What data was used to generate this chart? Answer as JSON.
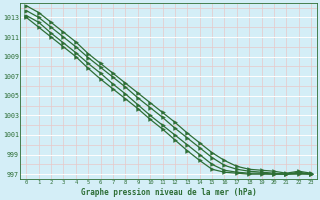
{
  "title": "Graphe pression niveau de la mer (hPa)",
  "bg_color": "#d4eef7",
  "grid_color_minor": "#e8c8c8",
  "grid_color_major": "#ffffff",
  "line_color": "#2d6e35",
  "xlim": [
    -0.5,
    23.5
  ],
  "ylim": [
    996.5,
    1014.5
  ],
  "yticks": [
    997,
    999,
    1001,
    1003,
    1005,
    1007,
    1009,
    1011,
    1013
  ],
  "xticks": [
    0,
    1,
    2,
    3,
    4,
    5,
    6,
    7,
    8,
    9,
    10,
    11,
    12,
    13,
    14,
    15,
    16,
    17,
    18,
    19,
    20,
    21,
    22,
    23
  ],
  "series": [
    [
      1014.2,
      1013.5,
      1012.5,
      1011.5,
      1010.5,
      1009.3,
      1008.3,
      1007.3,
      1006.3,
      1005.3,
      1004.3,
      1003.3,
      1002.3,
      1001.2,
      1000.2,
      999.2,
      998.4,
      997.8,
      997.5,
      997.4,
      997.3,
      997.1,
      997.3,
      997.1
    ],
    [
      1013.7,
      1013.0,
      1012.0,
      1011.0,
      1010.0,
      1008.9,
      1007.9,
      1006.9,
      1005.9,
      1004.8,
      1003.8,
      1002.8,
      1001.7,
      1000.7,
      999.7,
      998.7,
      997.9,
      997.5,
      997.3,
      997.2,
      997.1,
      997.0,
      997.2,
      997.0
    ],
    [
      1013.2,
      1012.5,
      1011.4,
      1010.4,
      1009.4,
      1008.3,
      1007.3,
      1006.2,
      1005.2,
      1004.1,
      1003.0,
      1002.0,
      1001.0,
      1000.0,
      999.0,
      998.0,
      997.4,
      997.2,
      997.1,
      997.1,
      997.0,
      997.0,
      997.1,
      997.0
    ],
    [
      1013.0,
      1012.0,
      1011.0,
      1010.0,
      1009.0,
      1007.8,
      1006.7,
      1005.7,
      1004.7,
      1003.7,
      1002.6,
      1001.6,
      1000.5,
      999.4,
      998.4,
      997.5,
      997.2,
      997.1,
      997.0,
      997.0,
      997.0,
      997.0,
      997.0,
      997.0
    ]
  ]
}
